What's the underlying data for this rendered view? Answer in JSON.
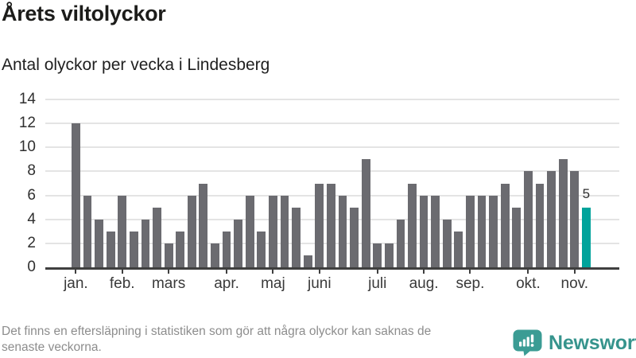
{
  "header": {
    "title": "Årets viltolyckor",
    "subtitle": "Antal olyckor per vecka i Lindesberg"
  },
  "chart_data": {
    "type": "bar",
    "title": "Årets viltolyckor",
    "subtitle": "Antal olyckor per vecka i Lindesberg",
    "x_unit": "vecka",
    "values": [
      12,
      6,
      4,
      3,
      6,
      3,
      4,
      5,
      2,
      3,
      6,
      7,
      2,
      3,
      4,
      6,
      3,
      6,
      6,
      5,
      1,
      7,
      7,
      6,
      5,
      9,
      2,
      2,
      4,
      7,
      6,
      6,
      4,
      3,
      6,
      6,
      6,
      7,
      5,
      8,
      7,
      8,
      9,
      8,
      5
    ],
    "highlight_last_index": 44,
    "last_value_label": "5",
    "month_ticks": [
      {
        "label": "jan.",
        "index": 0
      },
      {
        "label": "feb.",
        "index": 4
      },
      {
        "label": "mars",
        "index": 8
      },
      {
        "label": "apr.",
        "index": 13
      },
      {
        "label": "maj",
        "index": 17
      },
      {
        "label": "juni",
        "index": 21
      },
      {
        "label": "juli",
        "index": 26
      },
      {
        "label": "aug.",
        "index": 30
      },
      {
        "label": "sep.",
        "index": 34
      },
      {
        "label": "okt.",
        "index": 39
      },
      {
        "label": "nov.",
        "index": 43
      }
    ],
    "y_ticks": [
      0,
      2,
      4,
      6,
      8,
      10,
      12,
      14
    ],
    "ylim": [
      0,
      14
    ],
    "grid": true,
    "legend_position": "none",
    "bar_color": "#6b6b70",
    "highlight_color": "#00a39b",
    "axis_color": "#3f3f3f",
    "grid_color": "#e4e4e4"
  },
  "footer": {
    "note_line1": "Det finns en eftersläpning i statistiken som gör att några olyckor kan saknas de",
    "note_line2": "senaste veckorna.",
    "brand": "Newsworthy",
    "brand_color": "#36948d",
    "logo_color": "#3b9c94"
  }
}
